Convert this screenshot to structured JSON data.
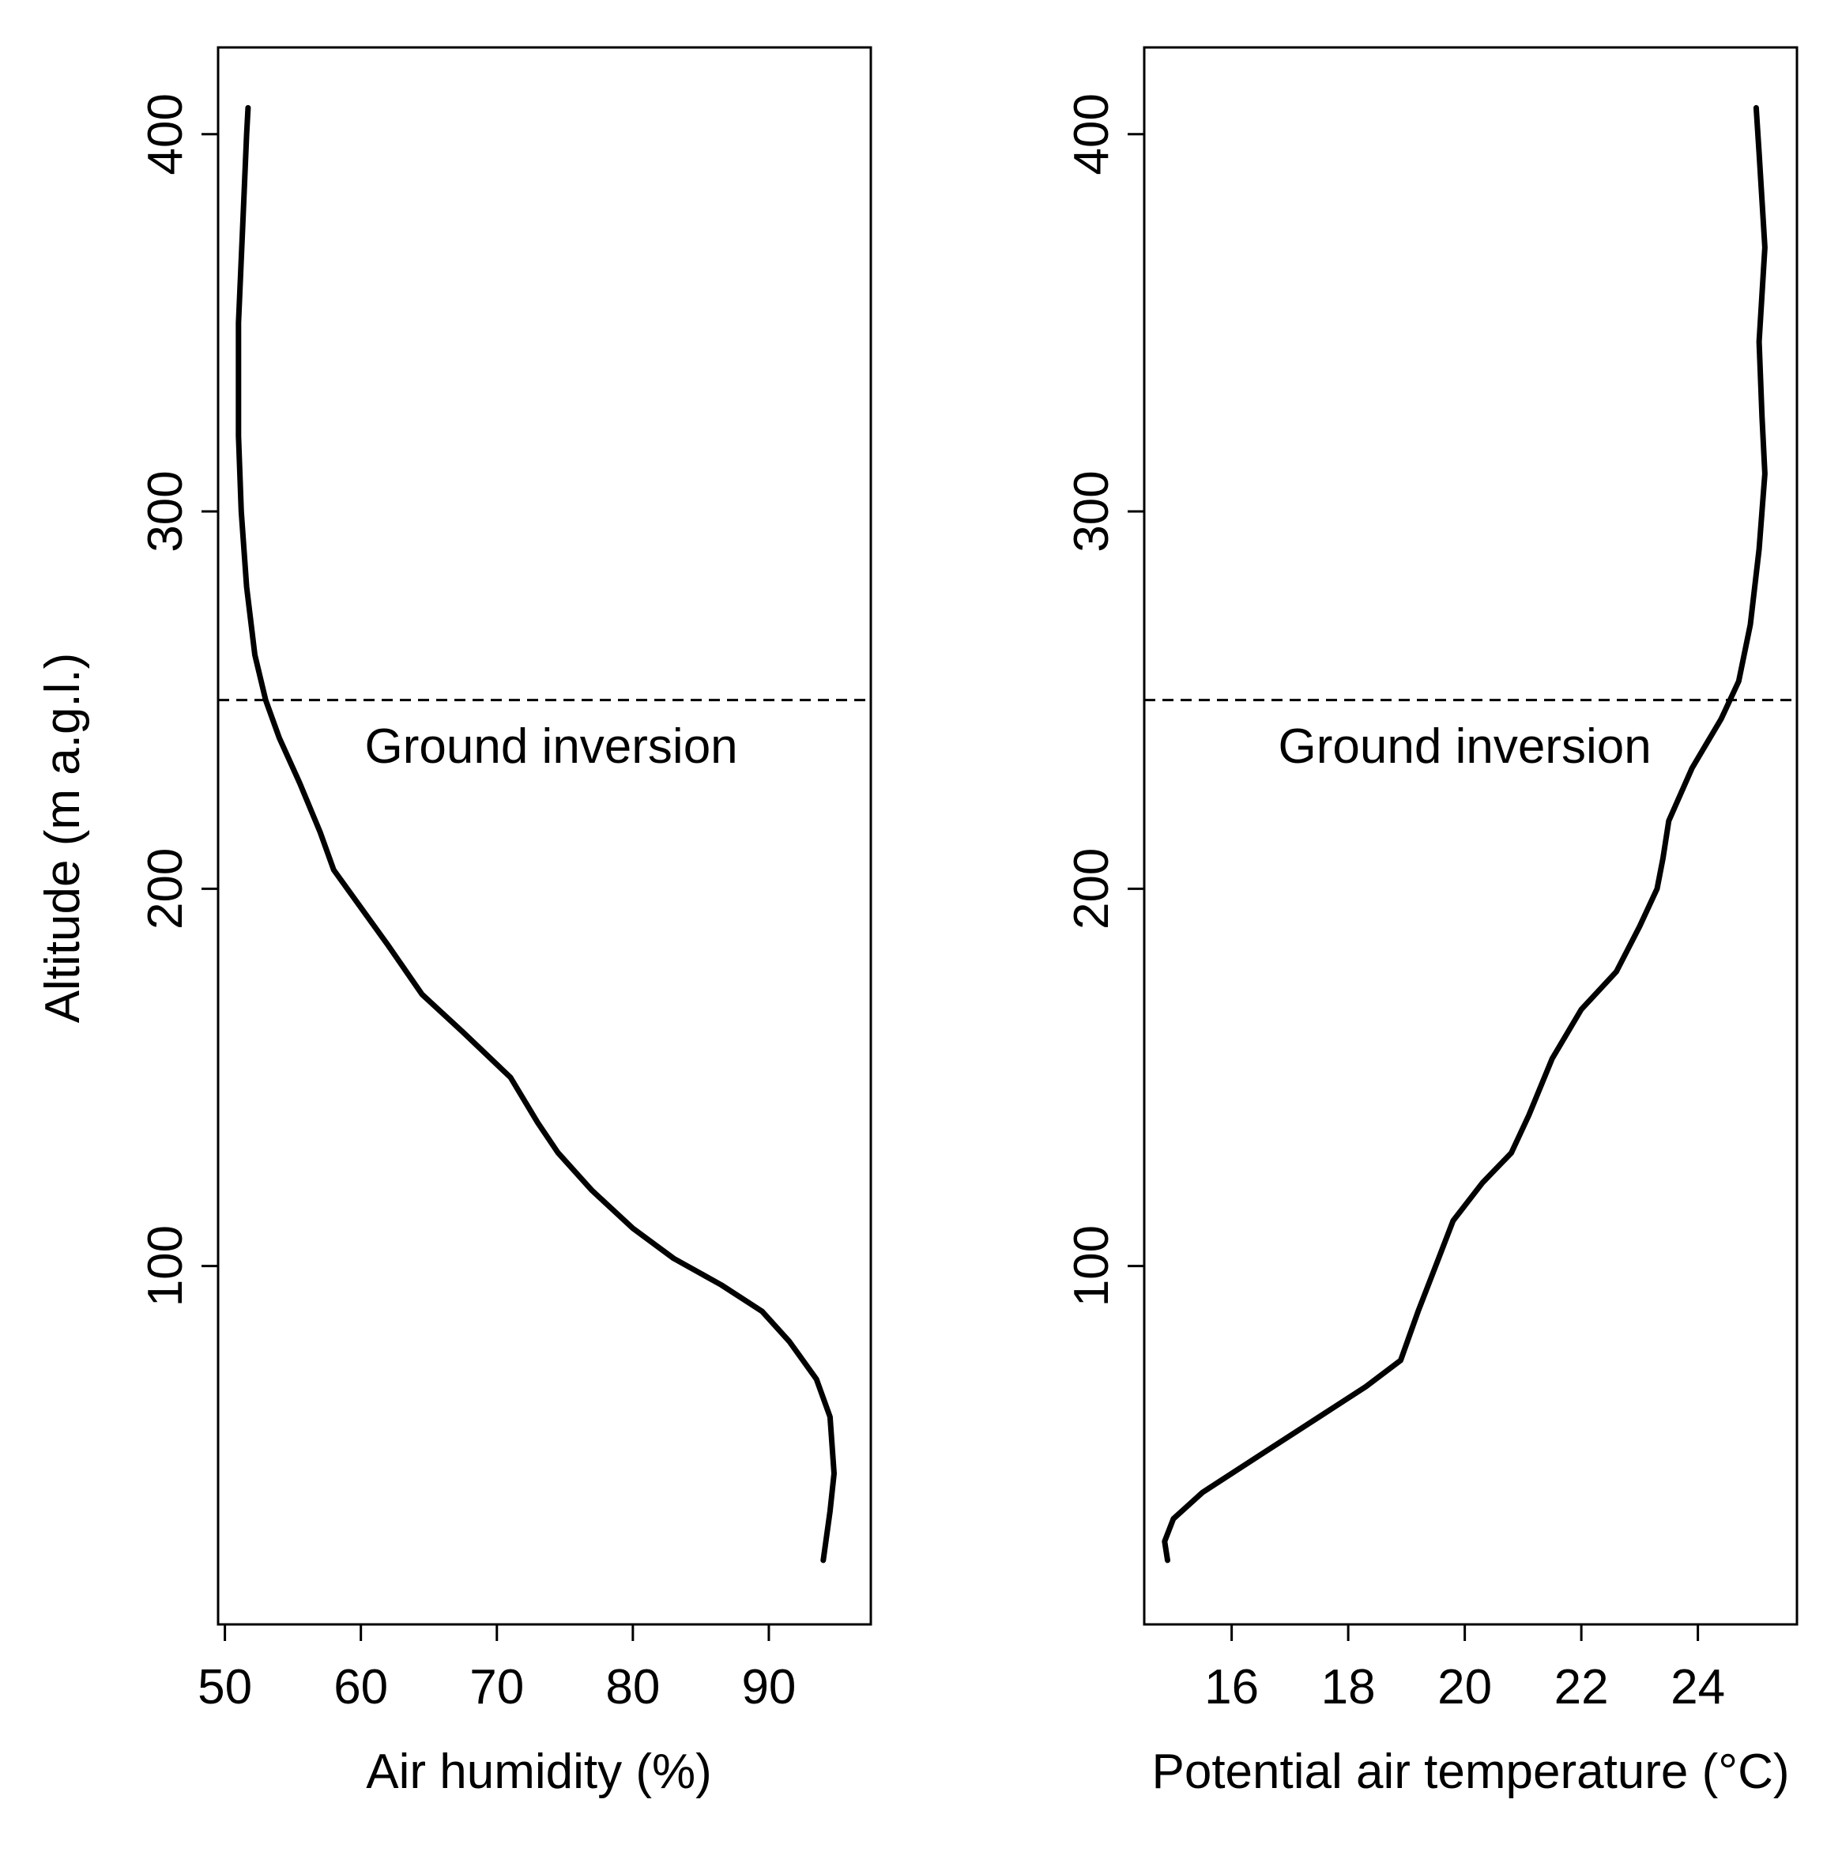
{
  "chart_data": [
    {
      "type": "line",
      "xlabel": "Air humidity (%)",
      "ylabel": "Altitude (m a.g.l.)",
      "xlim": [
        49.5,
        97.5
      ],
      "ylim": [
        5,
        423
      ],
      "xticks": [
        50,
        60,
        70,
        80,
        90
      ],
      "yticks": [
        100,
        200,
        300,
        400
      ],
      "tick_labels_x": [
        "50",
        "60",
        "70",
        "80",
        "90"
      ],
      "tick_labels_y": [
        "100",
        "200",
        "300",
        "400"
      ],
      "reference_line": {
        "y": 250,
        "style": "dashed"
      },
      "annotation": {
        "text": "Ground inversion",
        "x": 74,
        "y": 238
      },
      "series": [
        {
          "color": "#000000",
          "points": [
            [
              94.0,
              22
            ],
            [
              94.5,
              35
            ],
            [
              94.8,
              45
            ],
            [
              94.5,
              60
            ],
            [
              93.5,
              70
            ],
            [
              91.5,
              80
            ],
            [
              89.5,
              88
            ],
            [
              86.5,
              95
            ],
            [
              83.0,
              102
            ],
            [
              80.0,
              110
            ],
            [
              77.0,
              120
            ],
            [
              74.5,
              130
            ],
            [
              73.0,
              138
            ],
            [
              71.0,
              150
            ],
            [
              67.5,
              162
            ],
            [
              64.5,
              172
            ],
            [
              62.0,
              185
            ],
            [
              60.0,
              195
            ],
            [
              58.0,
              205
            ],
            [
              57.0,
              215
            ],
            [
              55.5,
              228
            ],
            [
              54.0,
              240
            ],
            [
              53.0,
              250
            ],
            [
              52.2,
              262
            ],
            [
              51.6,
              280
            ],
            [
              51.2,
              300
            ],
            [
              51.0,
              320
            ],
            [
              51.0,
              350
            ],
            [
              51.3,
              375
            ],
            [
              51.6,
              400
            ],
            [
              51.7,
              407
            ]
          ]
        }
      ]
    },
    {
      "type": "line",
      "xlabel": "Potential air temperature (°C)",
      "ylabel": "",
      "xlim": [
        14.5,
        25.7
      ],
      "ylim": [
        5,
        423
      ],
      "xticks": [
        16,
        18,
        20,
        22,
        24
      ],
      "yticks": [
        100,
        200,
        300,
        400
      ],
      "tick_labels_x": [
        "16",
        "18",
        "20",
        "22",
        "24"
      ],
      "tick_labels_y": [
        "100",
        "200",
        "300",
        "400"
      ],
      "reference_line": {
        "y": 250,
        "style": "dashed"
      },
      "annotation": {
        "text": "Ground inversion",
        "x": 20,
        "y": 238
      },
      "series": [
        {
          "color": "#000000",
          "points": [
            [
              14.9,
              22
            ],
            [
              14.85,
              27
            ],
            [
              15.0,
              33
            ],
            [
              15.5,
              40
            ],
            [
              16.5,
              50
            ],
            [
              17.5,
              60
            ],
            [
              18.3,
              68
            ],
            [
              18.9,
              75
            ],
            [
              19.2,
              88
            ],
            [
              19.5,
              100
            ],
            [
              19.8,
              112
            ],
            [
              20.3,
              122
            ],
            [
              20.8,
              130
            ],
            [
              21.1,
              140
            ],
            [
              21.5,
              155
            ],
            [
              22.0,
              168
            ],
            [
              22.6,
              178
            ],
            [
              23.0,
              190
            ],
            [
              23.3,
              200
            ],
            [
              23.4,
              208
            ],
            [
              23.5,
              218
            ],
            [
              23.9,
              232
            ],
            [
              24.4,
              245
            ],
            [
              24.7,
              255
            ],
            [
              24.9,
              270
            ],
            [
              25.05,
              290
            ],
            [
              25.15,
              310
            ],
            [
              25.1,
              325
            ],
            [
              25.05,
              345
            ],
            [
              25.15,
              370
            ],
            [
              25.05,
              395
            ],
            [
              25.0,
              407
            ]
          ]
        }
      ]
    }
  ]
}
